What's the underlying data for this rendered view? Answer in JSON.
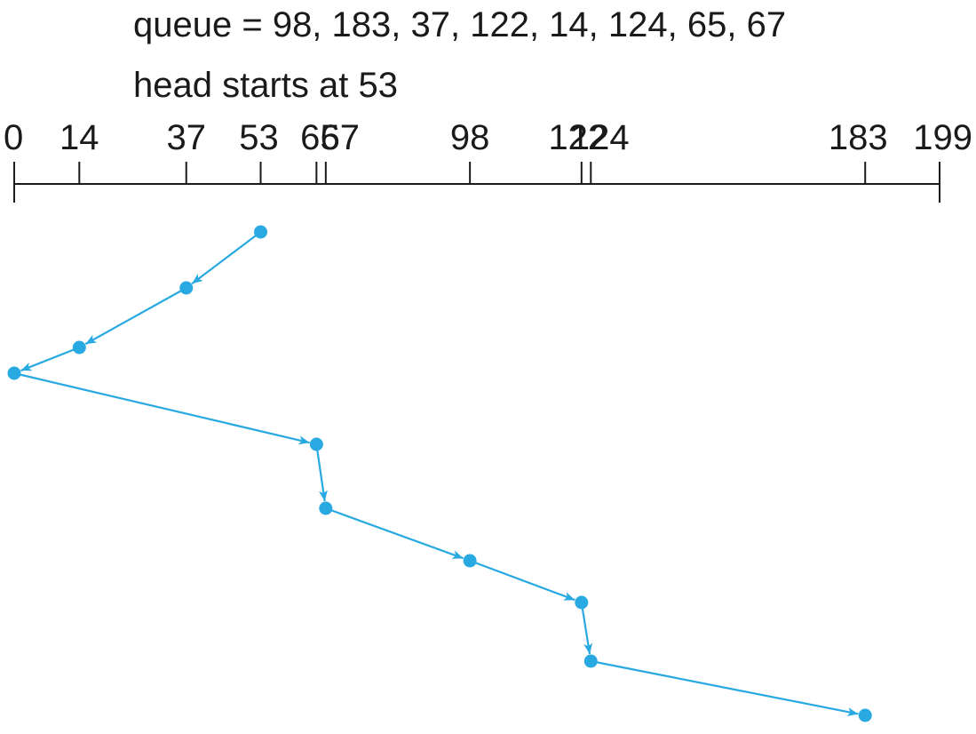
{
  "captions": {
    "queue": "queue = 98, 183, 37, 122, 14, 124, 65, 67",
    "head": "head starts at 53"
  },
  "axis": {
    "min": 0,
    "max": 199,
    "ticks": [
      {
        "value": 0,
        "label": "0"
      },
      {
        "value": 14,
        "label": "14"
      },
      {
        "value": 37,
        "label": "37"
      },
      {
        "value": 53,
        "label": "53"
      },
      {
        "value": 65,
        "label": "65"
      },
      {
        "value": 67,
        "label": "67"
      },
      {
        "value": 98,
        "label": "98"
      },
      {
        "value": 122,
        "label": "122"
      },
      {
        "value": 124,
        "label": "124"
      },
      {
        "value": 183,
        "label": "183"
      },
      {
        "value": 199,
        "label": "199"
      }
    ]
  },
  "path": {
    "color": "#29a9e1",
    "sequence": [
      53,
      37,
      14,
      0,
      65,
      67,
      98,
      122,
      124,
      183
    ]
  }
}
